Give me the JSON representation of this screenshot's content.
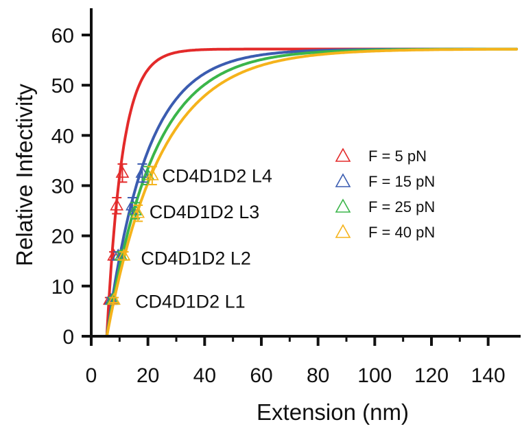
{
  "chart_data": {
    "type": "line",
    "xlabel": "Extension (nm)",
    "ylabel": "Relative Infectivity",
    "xlim": [
      0,
      150
    ],
    "ylim": [
      0,
      65
    ],
    "xticks": [
      0,
      20,
      40,
      60,
      80,
      100,
      120,
      140
    ],
    "yticks": [
      0,
      10,
      20,
      30,
      40,
      50,
      60
    ],
    "grid": false,
    "legend_position": "center-right",
    "series": [
      {
        "name": "F = 5 pN",
        "color": "#e32a2a",
        "fit": {
          "x0": 5.5,
          "ymax": 57.2,
          "tau": 5.5
        },
        "points": [
          {
            "x": 11,
            "y": 32.5,
            "err": 1.8
          },
          {
            "x": 9,
            "y": 26,
            "err": 1.6
          },
          {
            "x": 8,
            "y": 16,
            "err": 0.8
          },
          {
            "x": 6.5,
            "y": 7.2,
            "err": 0.5
          }
        ]
      },
      {
        "name": "F = 15 pN",
        "color": "#3b5cb0",
        "fit": {
          "x0": 5.5,
          "ymax": 57.2,
          "tau": 14
        },
        "points": [
          {
            "x": 18,
            "y": 32.5,
            "err": 1.8
          },
          {
            "x": 14.5,
            "y": 26,
            "err": 1.6
          },
          {
            "x": 9.5,
            "y": 16,
            "err": 0.8
          },
          {
            "x": 7,
            "y": 7.2,
            "err": 0.5
          }
        ]
      },
      {
        "name": "F = 25 pN",
        "color": "#3bb54a",
        "fit": {
          "x0": 5.5,
          "ymax": 57.2,
          "tau": 16.5
        },
        "points": [
          {
            "x": 20,
            "y": 32,
            "err": 1.8
          },
          {
            "x": 15.5,
            "y": 25,
            "err": 1.6
          },
          {
            "x": 10.5,
            "y": 16,
            "err": 0.8
          },
          {
            "x": 7.5,
            "y": 7.2,
            "err": 0.5
          }
        ]
      },
      {
        "name": "F = 40 pN",
        "color": "#f5b31b",
        "fit": {
          "x0": 5.5,
          "ymax": 57.2,
          "tau": 19
        },
        "points": [
          {
            "x": 21.5,
            "y": 32,
            "err": 1.8
          },
          {
            "x": 16.5,
            "y": 24.5,
            "err": 1.6
          },
          {
            "x": 11.5,
            "y": 16,
            "err": 0.8
          },
          {
            "x": 8,
            "y": 7.2,
            "err": 0.5
          }
        ]
      }
    ],
    "annotations": [
      {
        "text": "CD4D1D2 L4",
        "x": 25,
        "y": 30.7
      },
      {
        "text": "CD4D1D2 L3",
        "x": 20.5,
        "y": 23.5
      },
      {
        "text": "CD4D1D2 L2",
        "x": 17.5,
        "y": 14.3
      },
      {
        "text": "CD4D1D2 L1",
        "x": 15.5,
        "y": 5.7
      }
    ]
  }
}
